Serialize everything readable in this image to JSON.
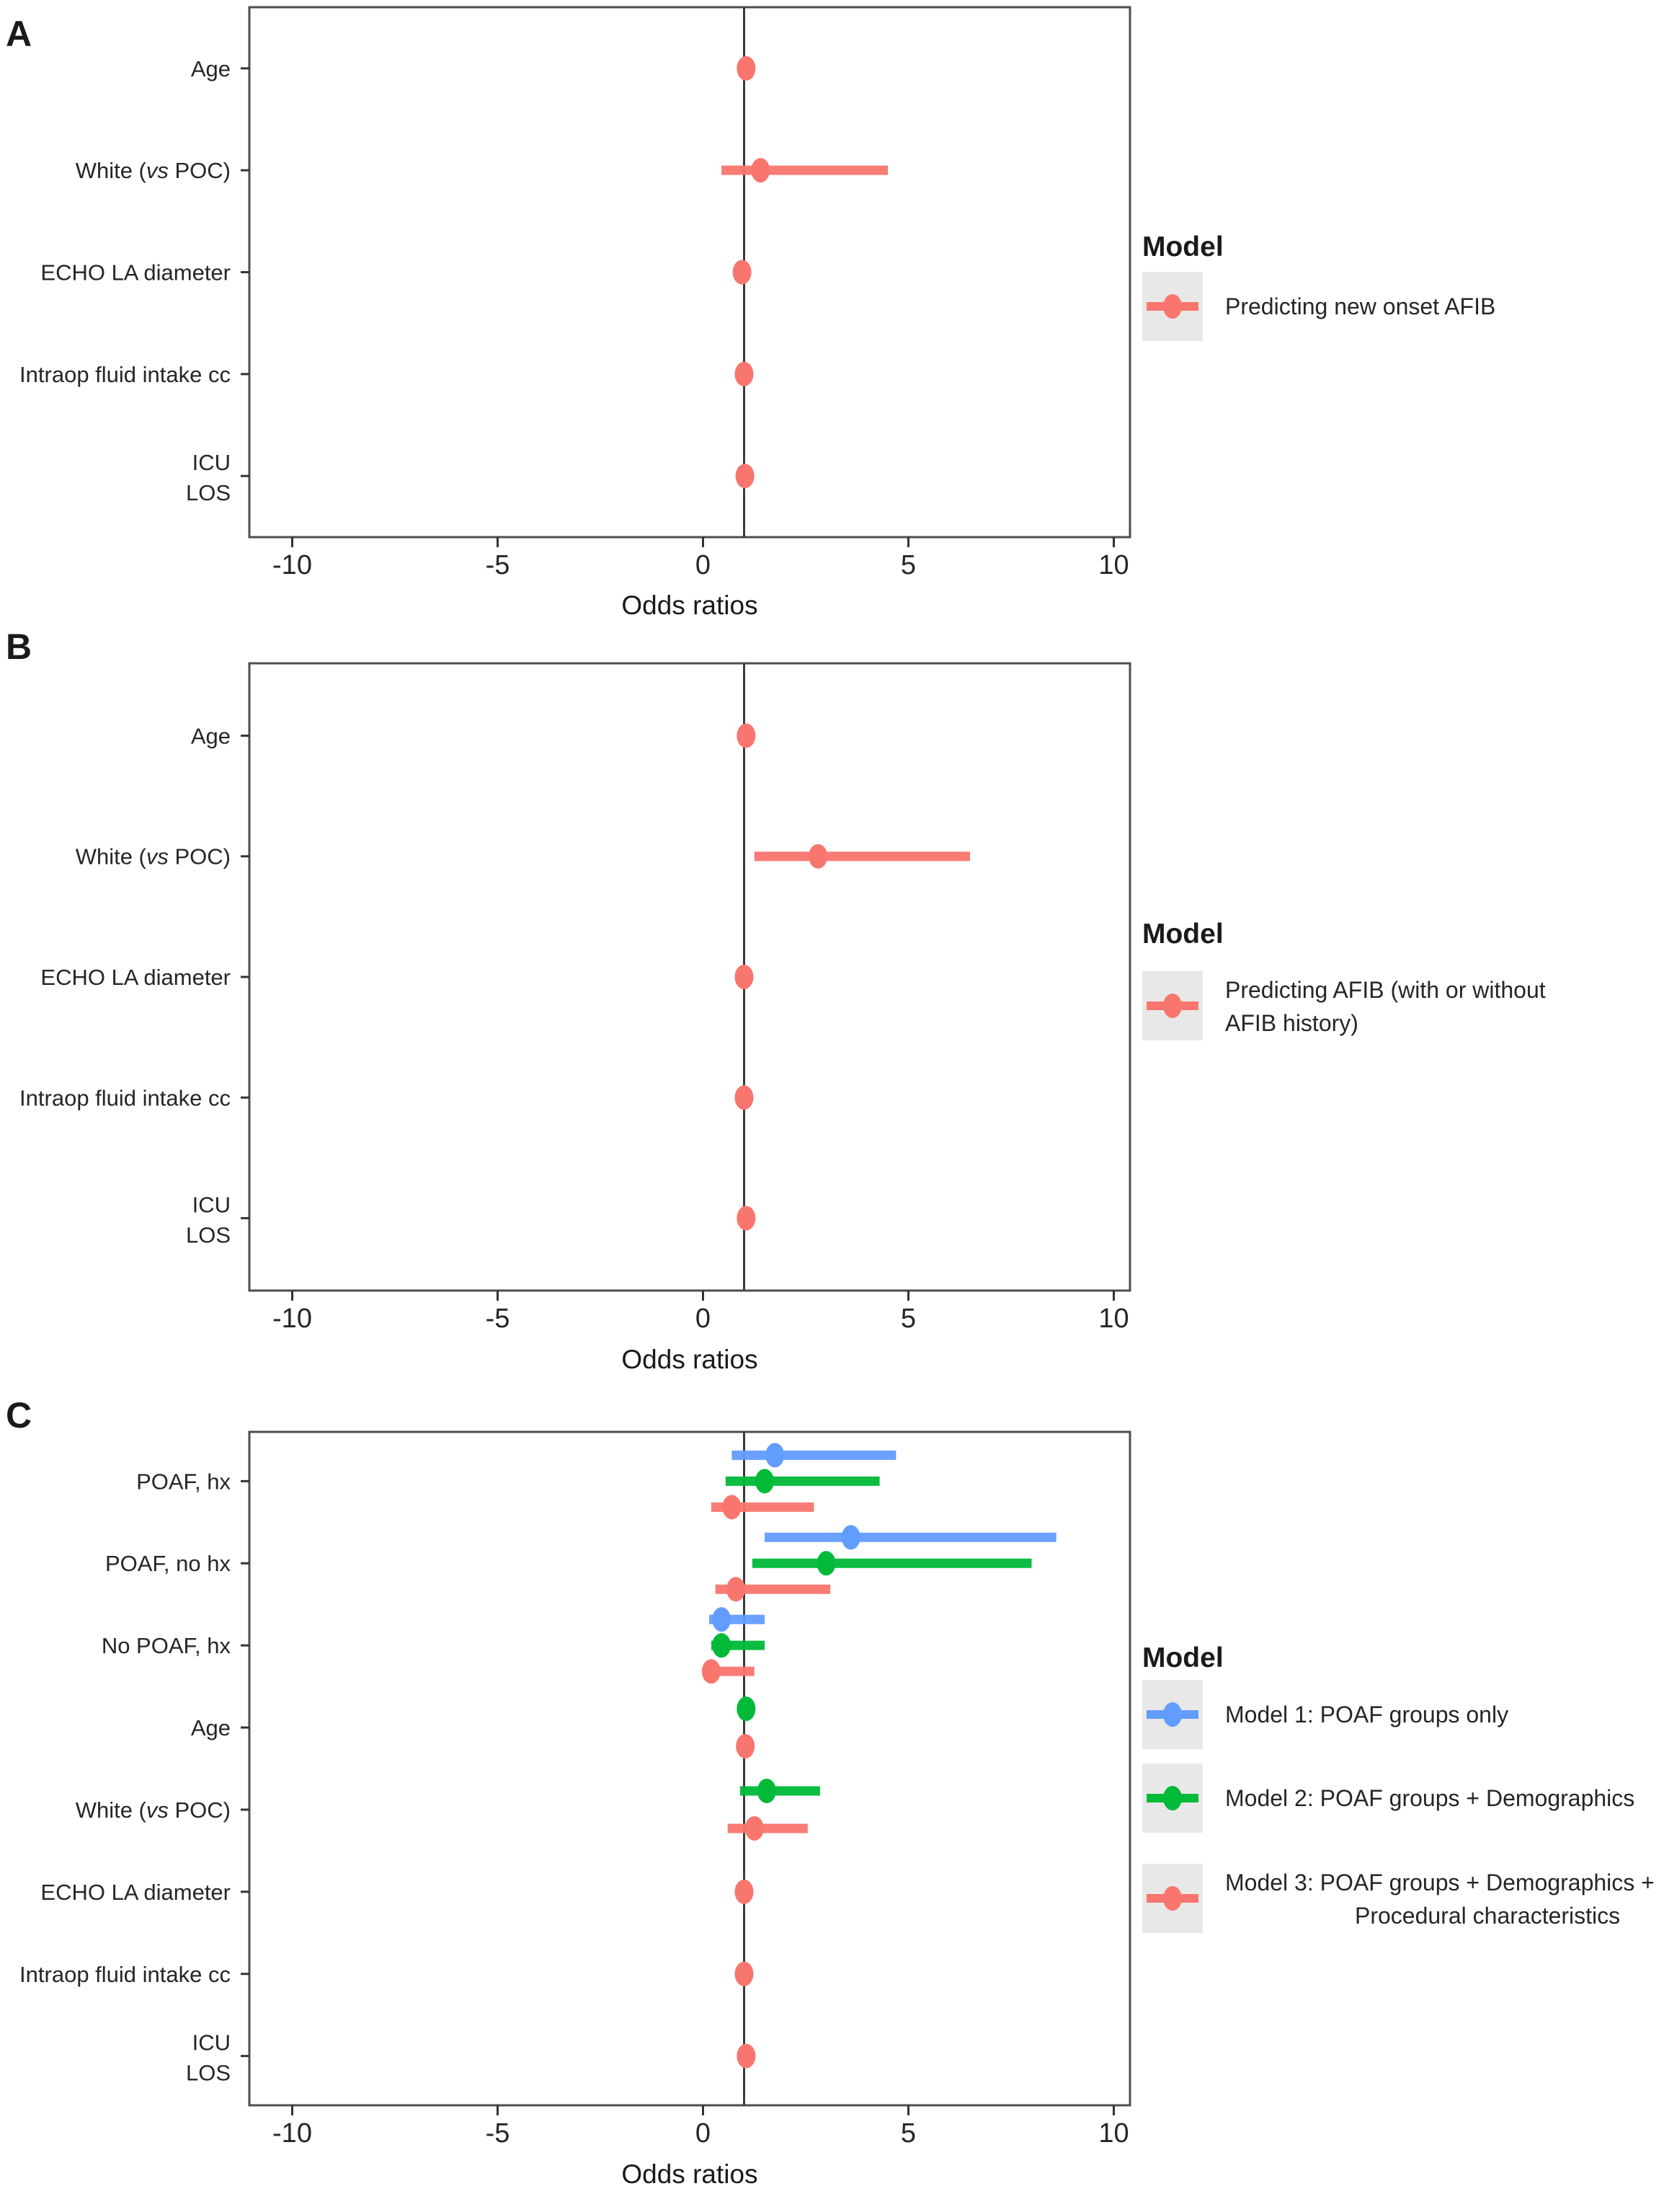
{
  "figure": {
    "background": "#ffffff",
    "border_color": "#4d4d4d",
    "reference_line_color": "#3a3a3a",
    "legend_key_fill": "#e8e8e8",
    "tick_color": "#333333"
  },
  "chart_data": [
    {
      "type": "scatter",
      "subtype": "forest-plot-odds-ratios",
      "panel_label": "A",
      "xlabel": "Odds ratios",
      "xlim": [
        -11,
        10.4
      ],
      "xticks": [
        -10,
        -5,
        0,
        5,
        10
      ],
      "reference_line_x": 1,
      "grid": false,
      "legend_title": "Model",
      "legend_position": "right",
      "categories": [
        "Age",
        "White (vs POC)",
        "ECHO LA diameter",
        "Intraop fluid intake cc",
        "ICU\nLOS"
      ],
      "series": [
        {
          "name": "Predicting new onset AFIB",
          "name_lines": [
            "Predicting new onset AFIB"
          ],
          "color": "#F8766D",
          "points": [
            {
              "category": "Age",
              "or": 1.05,
              "ci": [
                1.0,
                1.1
              ]
            },
            {
              "category": "White (vs POC)",
              "or": 1.4,
              "ci": [
                0.45,
                4.5
              ]
            },
            {
              "category": "ECHO LA diameter",
              "or": 0.95,
              "ci": [
                0.85,
                1.08
              ]
            },
            {
              "category": "Intraop fluid intake cc",
              "or": 1.0,
              "ci": [
                1.0,
                1.0
              ]
            },
            {
              "category": "ICU\nLOS",
              "or": 1.02,
              "ci": [
                0.95,
                1.1
              ]
            }
          ]
        }
      ]
    },
    {
      "type": "scatter",
      "subtype": "forest-plot-odds-ratios",
      "panel_label": "B",
      "xlabel": "Odds ratios",
      "xlim": [
        -11,
        10.4
      ],
      "xticks": [
        -10,
        -5,
        0,
        5,
        10
      ],
      "reference_line_x": 1,
      "grid": false,
      "legend_title": "Model",
      "legend_position": "right",
      "categories": [
        "Age",
        "White (vs POC)",
        "ECHO LA diameter",
        "Intraop fluid intake cc",
        "ICU\nLOS"
      ],
      "series": [
        {
          "name": "Predicting AFIB (with or without AFIB history)",
          "name_lines": [
            "Predicting AFIB (with or without",
            "AFIB history)"
          ],
          "color": "#F8766D",
          "points": [
            {
              "category": "Age",
              "or": 1.05,
              "ci": [
                1.0,
                1.12
              ]
            },
            {
              "category": "White (vs POC)",
              "or": 2.8,
              "ci": [
                1.25,
                6.5
              ]
            },
            {
              "category": "ECHO LA diameter",
              "or": 1.0,
              "ci": [
                0.9,
                1.1
              ]
            },
            {
              "category": "Intraop fluid intake cc",
              "or": 1.0,
              "ci": [
                1.0,
                1.0
              ]
            },
            {
              "category": "ICU\nLOS",
              "or": 1.05,
              "ci": [
                0.95,
                1.15
              ]
            }
          ]
        }
      ]
    },
    {
      "type": "scatter",
      "subtype": "forest-plot-odds-ratios",
      "panel_label": "C",
      "xlabel": "Odds ratios",
      "xlim": [
        -11,
        10.4
      ],
      "xticks": [
        -10,
        -5,
        0,
        5,
        10
      ],
      "reference_line_x": 1,
      "grid": false,
      "legend_title": "Model",
      "legend_position": "right",
      "categories": [
        "POAF, hx",
        "POAF, no hx",
        "No POAF, hx",
        "Age",
        "White (vs POC)",
        "ECHO LA diameter",
        "Intraop fluid intake cc",
        "ICU\nLOS"
      ],
      "series": [
        {
          "name": "Model 1: POAF groups only",
          "name_lines": [
            "Model 1: POAF groups only"
          ],
          "color": "#619CFF",
          "points": [
            {
              "category": "POAF, hx",
              "or": 1.75,
              "ci": [
                0.7,
                4.7
              ]
            },
            {
              "category": "POAF, no hx",
              "or": 3.6,
              "ci": [
                1.5,
                8.6
              ]
            },
            {
              "category": "No POAF, hx",
              "or": 0.45,
              "ci": [
                0.15,
                1.5
              ]
            }
          ]
        },
        {
          "name": "Model 2: POAF groups + Demographics",
          "name_lines": [
            "Model 2: POAF groups + Demographics"
          ],
          "color": "#00BA38",
          "points": [
            {
              "category": "POAF, hx",
              "or": 1.5,
              "ci": [
                0.55,
                4.3
              ]
            },
            {
              "category": "POAF, no hx",
              "or": 3.0,
              "ci": [
                1.2,
                8.0
              ]
            },
            {
              "category": "No POAF, hx",
              "or": 0.45,
              "ci": [
                0.2,
                1.5
              ]
            },
            {
              "category": "Age",
              "or": 1.05,
              "ci": [
                0.98,
                1.12
              ]
            },
            {
              "category": "White (vs POC)",
              "or": 1.55,
              "ci": [
                0.9,
                2.85
              ]
            }
          ]
        },
        {
          "name": "Model 3: POAF groups + Demographics + Procedural characteristics",
          "name_lines": [
            "Model 3: POAF groups + Demographics +",
            "Procedural characteristics"
          ],
          "color": "#F8766D",
          "points": [
            {
              "category": "POAF, hx",
              "or": 0.7,
              "ci": [
                0.2,
                2.7
              ]
            },
            {
              "category": "POAF, no hx",
              "or": 0.8,
              "ci": [
                0.3,
                3.1
              ]
            },
            {
              "category": "No POAF, hx",
              "or": 0.2,
              "ci": [
                0.05,
                1.25
              ]
            },
            {
              "category": "Age",
              "or": 1.03,
              "ci": [
                0.97,
                1.1
              ]
            },
            {
              "category": "White (vs POC)",
              "or": 1.25,
              "ci": [
                0.6,
                2.55
              ]
            },
            {
              "category": "ECHO LA diameter",
              "or": 1.0,
              "ci": [
                0.92,
                1.1
              ]
            },
            {
              "category": "Intraop fluid intake cc",
              "or": 1.0,
              "ci": [
                1.0,
                1.0
              ]
            },
            {
              "category": "ICU\nLOS",
              "or": 1.05,
              "ci": [
                0.96,
                1.15
              ]
            }
          ]
        }
      ]
    }
  ]
}
